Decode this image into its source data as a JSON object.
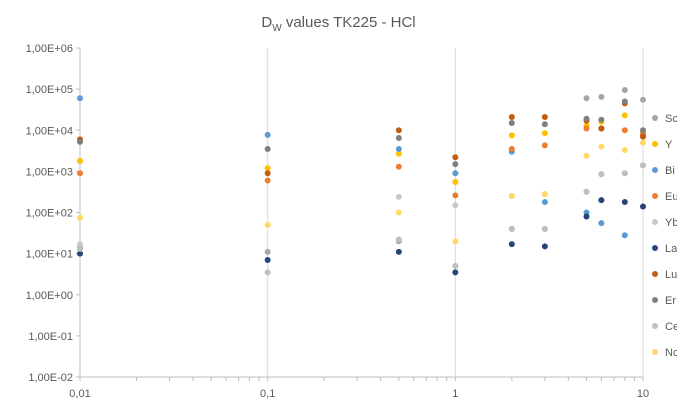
{
  "chart_data": {
    "type": "scatter",
    "title": {
      "main": "D",
      "sub": "W",
      "rest": " values TK225 - HCl"
    },
    "x_scale": "log",
    "y_scale": "log",
    "xlim": [
      0.01,
      10
    ],
    "ylim": [
      0.01,
      1000000
    ],
    "x_tick_labels": [
      "0,01",
      "0,1",
      "1",
      "10"
    ],
    "y_tick_labels": [
      "1,00E-02",
      "1,00E-01",
      "1,00E+00",
      "1,00E+01",
      "1,00E+02",
      "1,00E+03",
      "1,00E+04",
      "1,00E+05",
      "1,00E+06"
    ],
    "grid": "vertical major",
    "legend_position": "right",
    "x": [
      0.01,
      0.1,
      0.5,
      1,
      2,
      3,
      5,
      6,
      8,
      10
    ],
    "series": [
      {
        "name": "Sc",
        "color": "#a5a5a5",
        "values": [
          15,
          11,
          20,
          5,
          40,
          40,
          60000,
          65000,
          95000,
          55000
        ]
      },
      {
        "name": "Y",
        "color": "#ffc000",
        "values": [
          1800,
          1200,
          2700,
          550,
          7500,
          8500,
          13000,
          16000,
          23000,
          9000
        ]
      },
      {
        "name": "Bi",
        "color": "#5b9bd5",
        "values": [
          60000,
          7700,
          3500,
          900,
          3000,
          180,
          100,
          55,
          28,
          7500
        ]
      },
      {
        "name": "Eu",
        "color": "#ed7d31",
        "values": [
          900,
          600,
          1300,
          260,
          3500,
          4300,
          11000,
          11000,
          10000,
          8000
        ]
      },
      {
        "name": "Yb",
        "color": "#c9c9c9",
        "values": [
          17,
          3.5,
          240,
          150,
          250,
          280,
          320,
          850,
          900,
          1400
        ]
      },
      {
        "name": "La",
        "color": "#264478",
        "values": [
          10,
          7,
          11,
          3.5,
          17,
          15,
          80,
          200,
          180,
          140
        ]
      },
      {
        "name": "Lu",
        "color": "#c55a11",
        "values": [
          6000,
          900,
          10000,
          2200,
          21000,
          21000,
          17000,
          11000,
          45000,
          7000
        ]
      },
      {
        "name": "Er",
        "color": "#7f7f7f",
        "values": [
          5200,
          3500,
          6500,
          1500,
          15000,
          14000,
          19000,
          18000,
          50000,
          10000
        ]
      },
      {
        "name": "Ce",
        "color": "#bfbfbf",
        "values": [
          13,
          3.5,
          22,
          5,
          40,
          40,
          320,
          850,
          900,
          1400
        ]
      },
      {
        "name": "Nd",
        "color": "#ffd966",
        "values": [
          75,
          50,
          100,
          20,
          250,
          280,
          2400,
          4000,
          3300,
          5000
        ]
      }
    ],
    "legend_labels": [
      "Sc",
      "Y",
      "Bi",
      "Eu",
      "Yb",
      "La",
      "Lu",
      "Er",
      "Ce",
      "Nd"
    ]
  }
}
